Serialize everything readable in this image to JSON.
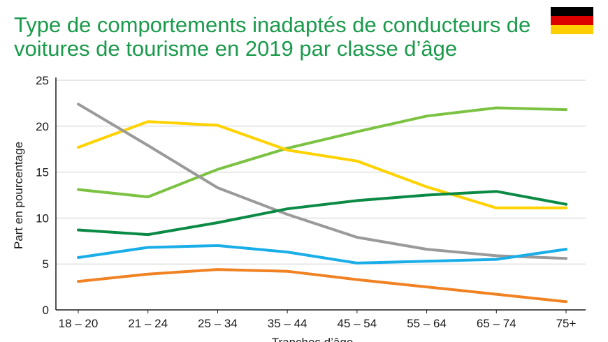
{
  "chart_data": {
    "type": "line",
    "title_line1": "Type de comportements inadaptés de conducteurs de",
    "title_line2": "voitures de tourisme en 2019 par classe d’âge",
    "xlabel": "Tranches d’âge",
    "ylabel": "Part en pourcentage",
    "categories": [
      "18 – 20",
      "21 – 24",
      "25 – 34",
      "35 – 44",
      "45 – 54",
      "55 – 64",
      "65 – 74",
      "75+"
    ],
    "ylim": [
      0,
      25
    ],
    "yticks": [
      0,
      5,
      10,
      15,
      20,
      25
    ],
    "grid": true,
    "legend": "none",
    "flag_colors": [
      "#000000",
      "#dd0000",
      "#ffce00"
    ],
    "series": [
      {
        "color": "#7cc242",
        "values": [
          13.1,
          12.3,
          15.3,
          17.6,
          19.4,
          21.1,
          22.0,
          21.8
        ]
      },
      {
        "color": "#ffd200",
        "values": [
          17.7,
          20.5,
          20.1,
          17.4,
          16.2,
          13.4,
          11.1,
          11.1
        ]
      },
      {
        "color": "#9a9a9a",
        "values": [
          22.4,
          17.9,
          13.3,
          10.4,
          7.9,
          6.6,
          5.9,
          5.6
        ]
      },
      {
        "color": "#0b8a45",
        "values": [
          8.7,
          8.2,
          9.5,
          11.0,
          11.9,
          12.5,
          12.9,
          11.5
        ]
      },
      {
        "color": "#1aaee8",
        "values": [
          5.7,
          6.8,
          7.0,
          6.3,
          5.1,
          5.3,
          5.5,
          6.6
        ]
      },
      {
        "color": "#f08223",
        "values": [
          3.1,
          3.9,
          4.4,
          4.2,
          3.3,
          2.5,
          1.7,
          0.9
        ]
      }
    ]
  }
}
